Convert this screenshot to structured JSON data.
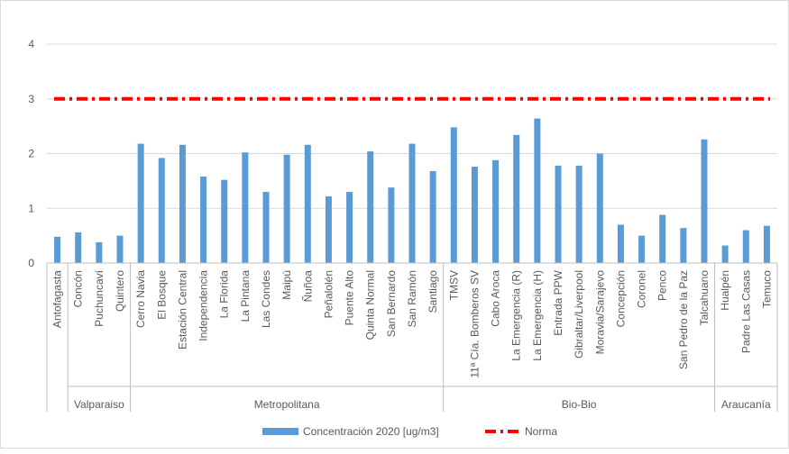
{
  "chart_data": {
    "type": "bar",
    "title": "",
    "xlabel": "",
    "ylabel": "",
    "ylim": [
      0,
      4
    ],
    "yticks": [
      "0",
      "1",
      "2",
      "3",
      "4"
    ],
    "grid": true,
    "legend_position": "bottom",
    "categories": [
      "Antofagasta",
      "Concón",
      "Puchuncaví",
      "Quintero",
      "Cerro Navia",
      "El Bosque",
      "Estación Central",
      "Independencia",
      "La Florida",
      "La Pintana",
      "Las Condes",
      "Maipú",
      "Ñuñoa",
      "Peñalolén",
      "Puente Alto",
      "Quinta Normal",
      "San Bernardo",
      "San Ramón",
      "Santiago",
      "TMSV",
      "11ª Cía. Bomberos SV",
      "Cabo Aroca",
      "La Emergencia (R)",
      "La Emergencia (H)",
      "Entrada PPW",
      "Gibraltar/Liverpool",
      "Moravia/Sarajevo",
      "Concepción",
      "Coronel",
      "Penco",
      "San Pedro de la Paz",
      "Talcahuano",
      "Hualpén",
      "Padre Las Casas",
      "Temuco"
    ],
    "groups": [
      {
        "name": "",
        "count": 1
      },
      {
        "name": "Valparaiso",
        "count": 3
      },
      {
        "name": "Metropolitana",
        "count": 15
      },
      {
        "name": "Bio-Bio",
        "count": 13
      },
      {
        "name": "Araucanía",
        "count": 3
      }
    ],
    "series": [
      {
        "name": "Concentración 2020 [ug/m3]",
        "type": "bar",
        "color": "#5B9BD5",
        "values": [
          0.48,
          0.56,
          0.38,
          0.5,
          2.18,
          1.92,
          2.16,
          1.58,
          1.52,
          2.02,
          1.3,
          1.98,
          2.16,
          1.22,
          1.3,
          2.04,
          1.38,
          2.18,
          1.68,
          2.48,
          1.76,
          1.88,
          2.34,
          2.64,
          1.78,
          1.78,
          2.0,
          0.7,
          0.5,
          0.88,
          0.64,
          2.26,
          0.32,
          0.6,
          0.68
        ]
      },
      {
        "name": "Norma",
        "type": "line",
        "style": "dash-dot",
        "color": "#FF0000",
        "value": 3
      }
    ]
  }
}
